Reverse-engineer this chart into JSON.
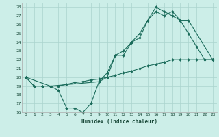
{
  "xlabel": "Humidex (Indice chaleur)",
  "bg_color": "#cceee8",
  "grid_color": "#aad4ce",
  "line_color": "#1a6b5a",
  "xlim": [
    -0.5,
    23.5
  ],
  "ylim": [
    16,
    28.5
  ],
  "yticks": [
    16,
    17,
    18,
    19,
    20,
    21,
    22,
    23,
    24,
    25,
    26,
    27,
    28
  ],
  "xticks": [
    0,
    1,
    2,
    3,
    4,
    5,
    6,
    7,
    8,
    9,
    10,
    11,
    12,
    13,
    14,
    15,
    16,
    17,
    18,
    19,
    20,
    21,
    22,
    23
  ],
  "line1_x": [
    0,
    1,
    2,
    3,
    4,
    5,
    6,
    7,
    8,
    9,
    10,
    11,
    12,
    13,
    14,
    15,
    16,
    17,
    18,
    19,
    20,
    21,
    22,
    23
  ],
  "line1_y": [
    20,
    19,
    19,
    19,
    18.5,
    16.5,
    16.5,
    16,
    17,
    19.5,
    20.5,
    22.5,
    22.5,
    24,
    25,
    26.5,
    28,
    27.5,
    27,
    26.5,
    25,
    23.5,
    22,
    22
  ],
  "line2_x": [
    0,
    3,
    9,
    10,
    11,
    12,
    13,
    14,
    15,
    16,
    17,
    18,
    19,
    20,
    23
  ],
  "line2_y": [
    20,
    19,
    19.5,
    20,
    22.5,
    23,
    24,
    24.5,
    26.5,
    27.5,
    27,
    27.5,
    26.5,
    26.5,
    22
  ],
  "line3_x": [
    0,
    1,
    2,
    3,
    4,
    5,
    6,
    7,
    8,
    9,
    10,
    11,
    12,
    13,
    14,
    15,
    16,
    17,
    18,
    19,
    20,
    21,
    22,
    23
  ],
  "line3_y": [
    20,
    19,
    19,
    19,
    19,
    19.2,
    19.4,
    19.5,
    19.7,
    19.8,
    20,
    20.2,
    20.5,
    20.7,
    21,
    21.3,
    21.5,
    21.7,
    22,
    22,
    22,
    22,
    22,
    22
  ]
}
